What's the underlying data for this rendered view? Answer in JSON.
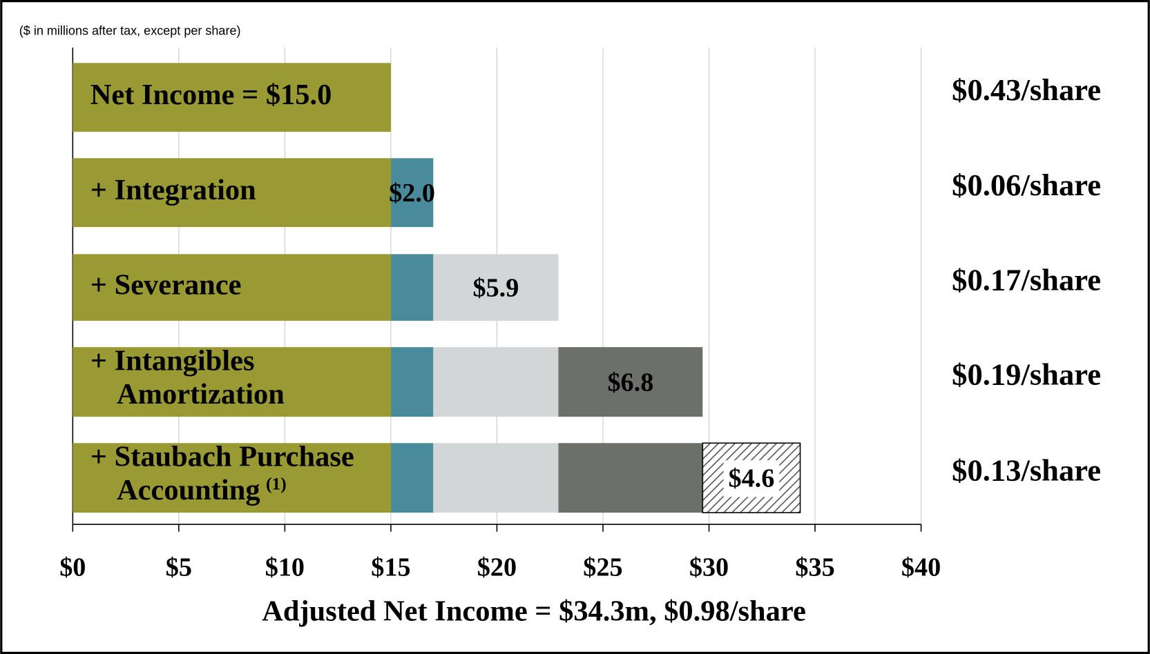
{
  "chart_data": {
    "type": "stacked_barh",
    "subtitle": "($ in millions after tax, except per share)",
    "xlabel": "Adjusted Net Income = $34.3m, $0.98/share",
    "categories": [
      [
        "Net Income = $15.0"
      ],
      [
        "+ Integration"
      ],
      [
        "+ Severance"
      ],
      [
        "+ Intangibles",
        "Amortization"
      ],
      [
        "+ Staubach Purchase",
        "Accounting"
      ]
    ],
    "category_notes": [
      null,
      null,
      null,
      null,
      "(1)"
    ],
    "series": [
      {
        "color": "#9a9a35",
        "values": [
          15.0,
          15.0,
          15.0,
          15.0,
          15.0
        ]
      },
      {
        "color": "#4a8b9b",
        "values": [
          null,
          2.0,
          2.0,
          2.0,
          2.0
        ],
        "value_labels": [
          null,
          "$2.0",
          null,
          null,
          null
        ]
      },
      {
        "color": "#d3d6d6",
        "values": [
          null,
          null,
          5.9,
          5.9,
          5.9
        ],
        "value_labels": [
          null,
          null,
          "$5.9",
          null,
          null
        ]
      },
      {
        "color": "#6d6f6b",
        "values": [
          null,
          null,
          null,
          6.8,
          6.8
        ],
        "value_labels": [
          null,
          null,
          null,
          "$6.8",
          null
        ]
      },
      {
        "color": "#555555",
        "pattern": "hatch",
        "values": [
          null,
          null,
          null,
          null,
          4.6
        ],
        "value_labels": [
          null,
          null,
          null,
          null,
          "$4.6"
        ]
      }
    ],
    "per_share": [
      "$0.43/share",
      "$0.06/share",
      "$0.17/share",
      "$0.19/share",
      "$0.13/share"
    ],
    "per_share_colors": [
      "#000000",
      "#000000",
      "#000000",
      "#000000",
      "#bfbfbf"
    ],
    "xlim": [
      0,
      40
    ],
    "xticks": [
      {
        "value": 0,
        "label": "$0"
      },
      {
        "value": 5,
        "label": "$5"
      },
      {
        "value": 10,
        "label": "$10"
      },
      {
        "value": 15,
        "label": "$15"
      },
      {
        "value": 20,
        "label": "$20"
      },
      {
        "value": 25,
        "label": "$25"
      },
      {
        "value": 30,
        "label": "$30"
      },
      {
        "value": 35,
        "label": "$35"
      },
      {
        "value": 40,
        "label": "$40"
      }
    ],
    "grid": true
  }
}
